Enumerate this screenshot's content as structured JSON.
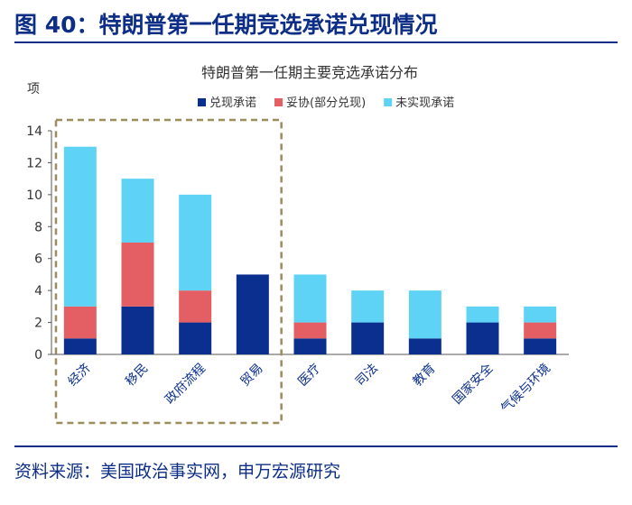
{
  "figure": {
    "title": "图 40：特朗普第一任期竞选承诺兑现情况",
    "source": "资料来源：美国政治事实网，申万宏源研究"
  },
  "colors": {
    "accent": "#0d2e87",
    "fulfilled": "#0a2f8f",
    "compromise": "#e45f63",
    "unfulfilled": "#5fd3f5",
    "highlight_box": "#9b8d5d"
  },
  "chart_data": {
    "type": "bar",
    "stacked": true,
    "title": "特朗普第一任期主要竞选承诺分布",
    "ylabel": "项",
    "xlabel": "",
    "ylim": [
      0,
      14
    ],
    "yticks": [
      0,
      2,
      4,
      6,
      8,
      10,
      12,
      14
    ],
    "legend_position": "top-right",
    "categories": [
      "经济",
      "移民",
      "政府流程",
      "贸易",
      "医疗",
      "司法",
      "教育",
      "国家安全",
      "气候与环境"
    ],
    "series": [
      {
        "name": "兑现承诺",
        "values": [
          1,
          3,
          2,
          5,
          1,
          2,
          1,
          2,
          1
        ]
      },
      {
        "name": "妥协(部分兑现)",
        "values": [
          2,
          4,
          2,
          0,
          1,
          0,
          0,
          0,
          1
        ]
      },
      {
        "name": "未实现承诺",
        "values": [
          10,
          4,
          6,
          0,
          3,
          2,
          3,
          1,
          1
        ]
      }
    ],
    "highlighted_categories": [
      "经济",
      "移民",
      "政府流程",
      "贸易"
    ]
  }
}
